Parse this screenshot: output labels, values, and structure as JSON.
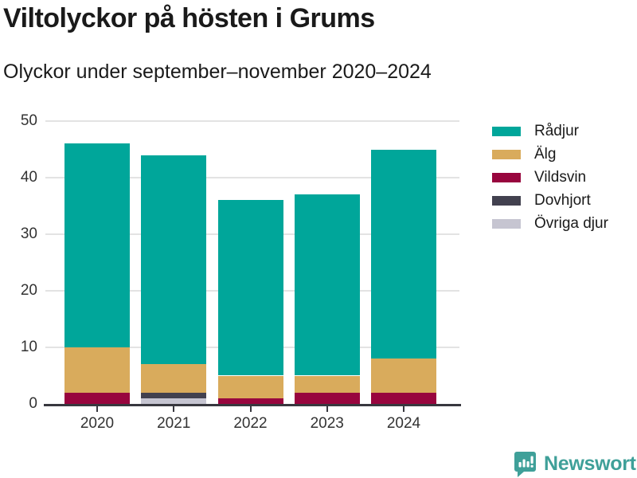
{
  "chart_data": {
    "type": "bar",
    "stacked": true,
    "title": "Viltolyckor på hösten i Grums",
    "subtitle": "Olyckor under september–november 2020–2024",
    "categories": [
      "2020",
      "2021",
      "2022",
      "2023",
      "2024"
    ],
    "series": [
      {
        "name": "Rådjur",
        "color": "#00a69a",
        "values": [
          36,
          37,
          31,
          32,
          37
        ]
      },
      {
        "name": "Älg",
        "color": "#d9ab5c",
        "values": [
          8,
          5,
          4,
          3,
          6
        ]
      },
      {
        "name": "Vildsvin",
        "color": "#98053e",
        "values": [
          2,
          0,
          1,
          2,
          2
        ]
      },
      {
        "name": "Dovhjort",
        "color": "#42414f",
        "values": [
          0,
          1,
          0,
          0,
          0
        ]
      },
      {
        "name": "Övriga djur",
        "color": "#c6c5d1",
        "values": [
          0,
          1,
          0,
          0,
          0
        ]
      }
    ],
    "stack_order_bottom_to_top": [
      "Övriga djur",
      "Dovhjort",
      "Vildsvin",
      "Älg",
      "Rådjur"
    ],
    "totals": [
      46,
      44,
      36,
      37,
      45
    ],
    "xlabel": "",
    "ylabel": "",
    "ylim": [
      0,
      50
    ],
    "yticks": [
      0,
      10,
      20,
      30,
      40,
      50
    ],
    "grid": true,
    "legend_position": "right"
  },
  "footer": {
    "brand": "Newsworthy",
    "logo_icon": "bar-chart-speech-bubble"
  },
  "colors": {
    "axis": "#38383f",
    "grid": "#e3e3e3",
    "title_text": "#1a1a1a",
    "tick_text": "#333333",
    "brand": "#3fa099"
  }
}
